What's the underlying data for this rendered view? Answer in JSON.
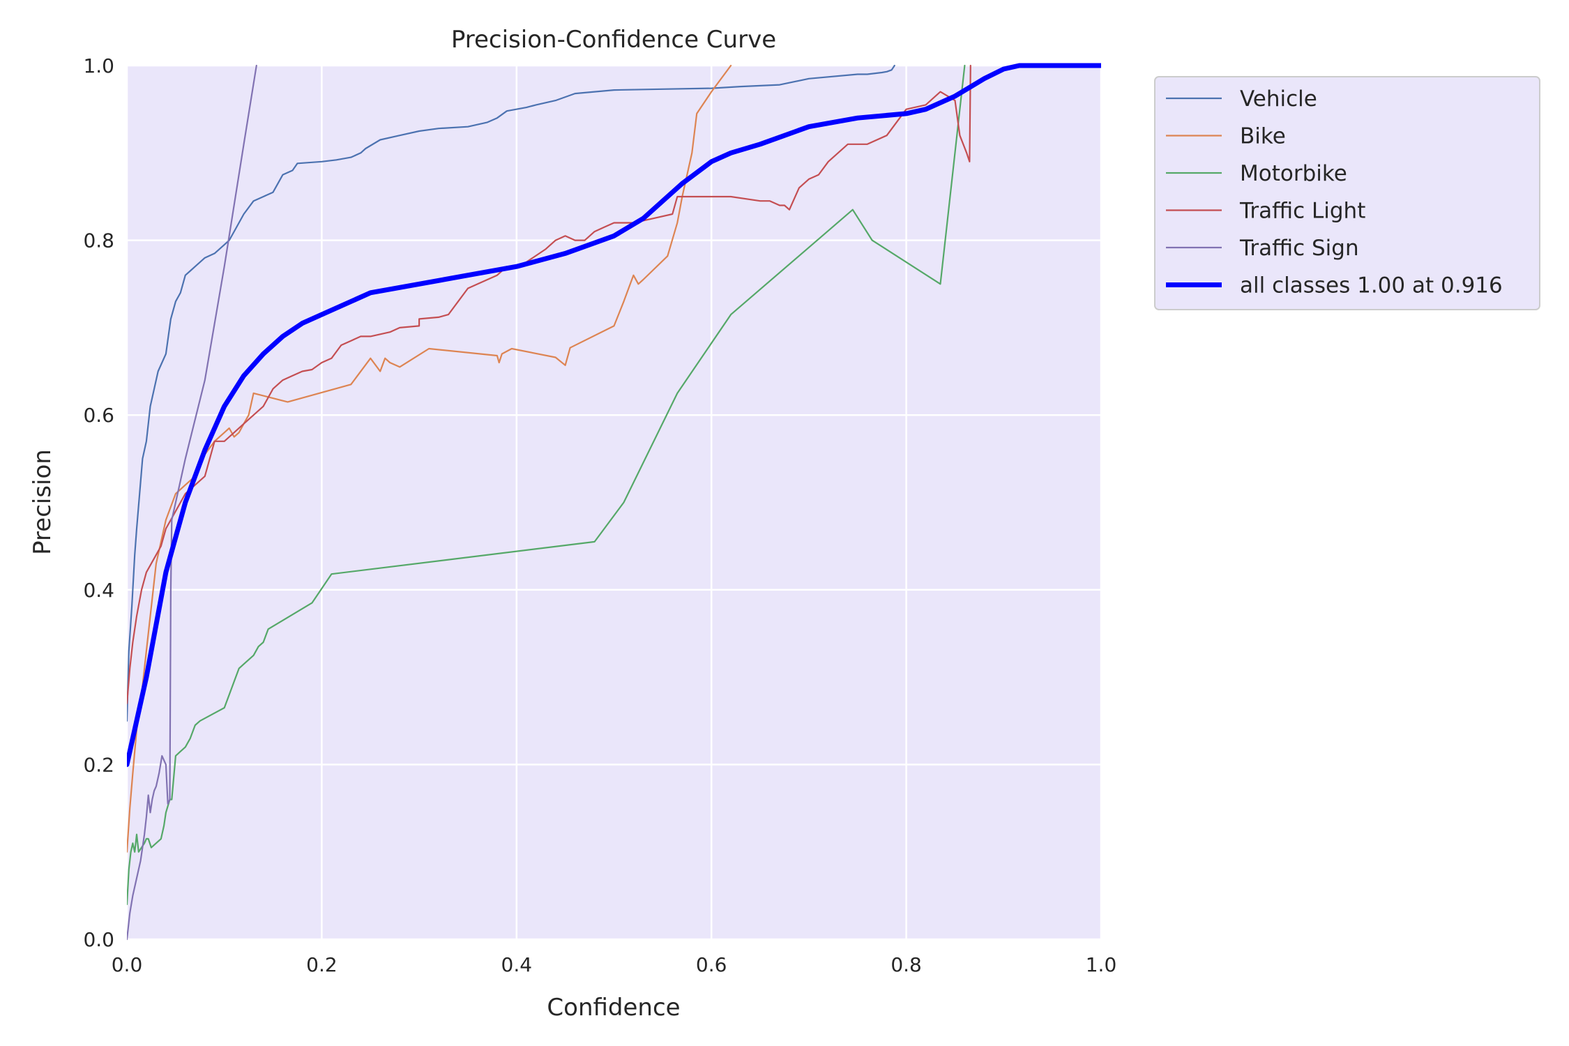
{
  "chart_data": {
    "type": "line",
    "title": "Precision-Confidence Curve",
    "xlabel": "Confidence",
    "ylabel": "Precision",
    "xlim": [
      0,
      1
    ],
    "ylim": [
      0,
      1
    ],
    "xticks": [
      "0.0",
      "0.2",
      "0.4",
      "0.6",
      "0.8",
      "1.0"
    ],
    "yticks": [
      "0.0",
      "0.2",
      "0.4",
      "0.6",
      "0.8",
      "1.0"
    ],
    "grid": true,
    "legend_position": "outside-top-right",
    "background_color": "#EAE6FA",
    "series": [
      {
        "name": "Vehicle",
        "color": "#4C72B0",
        "x": [
          0,
          0.002,
          0.005,
          0.008,
          0.01,
          0.013,
          0.016,
          0.02,
          0.024,
          0.028,
          0.032,
          0.036,
          0.04,
          0.045,
          0.05,
          0.055,
          0.06,
          0.065,
          0.07,
          0.075,
          0.08,
          0.09,
          0.1,
          0.105,
          0.11,
          0.12,
          0.13,
          0.14,
          0.15,
          0.155,
          0.16,
          0.17,
          0.175,
          0.2,
          0.215,
          0.23,
          0.24,
          0.245,
          0.26,
          0.28,
          0.3,
          0.32,
          0.35,
          0.37,
          0.38,
          0.39,
          0.41,
          0.42,
          0.44,
          0.46,
          0.5,
          0.55,
          0.6,
          0.63,
          0.67,
          0.7,
          0.75,
          0.76,
          0.775,
          0.78,
          0.785,
          0.788
        ],
        "y": [
          0.25,
          0.33,
          0.38,
          0.44,
          0.47,
          0.51,
          0.55,
          0.57,
          0.61,
          0.63,
          0.65,
          0.66,
          0.67,
          0.71,
          0.73,
          0.74,
          0.76,
          0.765,
          0.77,
          0.775,
          0.78,
          0.785,
          0.795,
          0.8,
          0.81,
          0.83,
          0.845,
          0.85,
          0.855,
          0.865,
          0.875,
          0.88,
          0.888,
          0.89,
          0.892,
          0.895,
          0.9,
          0.905,
          0.915,
          0.92,
          0.925,
          0.928,
          0.93,
          0.935,
          0.94,
          0.948,
          0.952,
          0.955,
          0.96,
          0.968,
          0.972,
          0.973,
          0.974,
          0.976,
          0.978,
          0.985,
          0.99,
          0.99,
          0.992,
          0.993,
          0.995,
          1.0
        ]
      },
      {
        "name": "Bike",
        "color": "#DD8452",
        "x": [
          0,
          0.003,
          0.006,
          0.01,
          0.015,
          0.02,
          0.025,
          0.03,
          0.04,
          0.05,
          0.06,
          0.07,
          0.08,
          0.09,
          0.1,
          0.105,
          0.11,
          0.115,
          0.12,
          0.125,
          0.13,
          0.165,
          0.23,
          0.25,
          0.26,
          0.265,
          0.27,
          0.28,
          0.31,
          0.38,
          0.382,
          0.385,
          0.395,
          0.44,
          0.45,
          0.455,
          0.5,
          0.51,
          0.52,
          0.525,
          0.53,
          0.555,
          0.565,
          0.57,
          0.58,
          0.585,
          0.6,
          0.62
        ],
        "y": [
          0.1,
          0.15,
          0.19,
          0.24,
          0.28,
          0.33,
          0.38,
          0.43,
          0.48,
          0.51,
          0.52,
          0.53,
          0.555,
          0.57,
          0.58,
          0.585,
          0.575,
          0.58,
          0.59,
          0.6,
          0.625,
          0.615,
          0.635,
          0.665,
          0.65,
          0.665,
          0.66,
          0.655,
          0.676,
          0.668,
          0.66,
          0.67,
          0.676,
          0.666,
          0.657,
          0.677,
          0.702,
          0.73,
          0.76,
          0.75,
          0.755,
          0.782,
          0.82,
          0.85,
          0.9,
          0.945,
          0.97,
          1.0
        ]
      },
      {
        "name": "Motorbike",
        "color": "#55A868",
        "x": [
          0,
          0.002,
          0.004,
          0.006,
          0.008,
          0.01,
          0.012,
          0.015,
          0.018,
          0.02,
          0.022,
          0.025,
          0.03,
          0.035,
          0.038,
          0.04,
          0.044,
          0.046,
          0.05,
          0.055,
          0.06,
          0.065,
          0.07,
          0.075,
          0.1,
          0.105,
          0.11,
          0.115,
          0.12,
          0.13,
          0.135,
          0.14,
          0.145,
          0.19,
          0.21,
          0.48,
          0.51,
          0.565,
          0.62,
          0.745,
          0.765,
          0.835,
          0.86
        ],
        "y": [
          0.04,
          0.08,
          0.1,
          0.11,
          0.1,
          0.12,
          0.1,
          0.105,
          0.11,
          0.115,
          0.115,
          0.105,
          0.11,
          0.115,
          0.13,
          0.145,
          0.16,
          0.16,
          0.21,
          0.215,
          0.22,
          0.23,
          0.245,
          0.25,
          0.265,
          0.28,
          0.295,
          0.31,
          0.315,
          0.325,
          0.335,
          0.34,
          0.355,
          0.385,
          0.418,
          0.455,
          0.5,
          0.625,
          0.715,
          0.835,
          0.8,
          0.75,
          1.0
        ]
      },
      {
        "name": "Traffic Light",
        "color": "#C44E52",
        "x": [
          0,
          0.003,
          0.006,
          0.01,
          0.015,
          0.02,
          0.025,
          0.03,
          0.035,
          0.04,
          0.045,
          0.05,
          0.06,
          0.07,
          0.08,
          0.09,
          0.1,
          0.11,
          0.12,
          0.13,
          0.14,
          0.15,
          0.16,
          0.17,
          0.18,
          0.19,
          0.2,
          0.21,
          0.22,
          0.23,
          0.24,
          0.25,
          0.27,
          0.28,
          0.3,
          0.3,
          0.32,
          0.33,
          0.34,
          0.35,
          0.36,
          0.37,
          0.38,
          0.39,
          0.4,
          0.41,
          0.43,
          0.44,
          0.45,
          0.46,
          0.47,
          0.48,
          0.49,
          0.5,
          0.52,
          0.54,
          0.56,
          0.565,
          0.6,
          0.62,
          0.65,
          0.66,
          0.67,
          0.675,
          0.68,
          0.69,
          0.7,
          0.71,
          0.72,
          0.73,
          0.74,
          0.76,
          0.78,
          0.8,
          0.82,
          0.835,
          0.85,
          0.855,
          0.862,
          0.865,
          0.866
        ],
        "y": [
          0.27,
          0.31,
          0.34,
          0.37,
          0.4,
          0.42,
          0.43,
          0.44,
          0.45,
          0.47,
          0.48,
          0.49,
          0.51,
          0.52,
          0.53,
          0.57,
          0.57,
          0.58,
          0.59,
          0.6,
          0.61,
          0.63,
          0.64,
          0.645,
          0.65,
          0.652,
          0.66,
          0.665,
          0.68,
          0.685,
          0.69,
          0.69,
          0.695,
          0.7,
          0.702,
          0.71,
          0.712,
          0.715,
          0.73,
          0.745,
          0.75,
          0.755,
          0.76,
          0.77,
          0.77,
          0.775,
          0.79,
          0.8,
          0.805,
          0.8,
          0.8,
          0.81,
          0.815,
          0.82,
          0.82,
          0.825,
          0.83,
          0.85,
          0.85,
          0.85,
          0.845,
          0.845,
          0.84,
          0.84,
          0.835,
          0.86,
          0.87,
          0.875,
          0.89,
          0.9,
          0.91,
          0.91,
          0.92,
          0.95,
          0.955,
          0.97,
          0.96,
          0.92,
          0.9,
          0.89,
          1.0
        ]
      },
      {
        "name": "Traffic Sign",
        "color": "#8172B2",
        "x": [
          0,
          0.003,
          0.006,
          0.01,
          0.014,
          0.018,
          0.02,
          0.022,
          0.024,
          0.026,
          0.028,
          0.03,
          0.033,
          0.036,
          0.04,
          0.042,
          0.044,
          0.045,
          0.046,
          0.048,
          0.05,
          0.06,
          0.08,
          0.1,
          0.12,
          0.133
        ],
        "y": [
          0.0,
          0.03,
          0.05,
          0.07,
          0.09,
          0.12,
          0.14,
          0.165,
          0.145,
          0.16,
          0.17,
          0.175,
          0.19,
          0.21,
          0.2,
          0.155,
          0.16,
          0.4,
          0.48,
          0.49,
          0.5,
          0.55,
          0.64,
          0.77,
          0.91,
          1.0
        ]
      },
      {
        "name": "all classes 1.00 at 0.916",
        "color": "#0000FF",
        "width": 7,
        "x": [
          0,
          0.02,
          0.04,
          0.06,
          0.08,
          0.1,
          0.12,
          0.14,
          0.16,
          0.18,
          0.2,
          0.25,
          0.3,
          0.35,
          0.4,
          0.45,
          0.5,
          0.53,
          0.55,
          0.57,
          0.6,
          0.62,
          0.65,
          0.7,
          0.75,
          0.8,
          0.82,
          0.85,
          0.88,
          0.9,
          0.916,
          1.0
        ],
        "y": [
          0.2,
          0.3,
          0.42,
          0.5,
          0.56,
          0.61,
          0.645,
          0.67,
          0.69,
          0.705,
          0.715,
          0.74,
          0.75,
          0.76,
          0.77,
          0.785,
          0.805,
          0.825,
          0.845,
          0.865,
          0.89,
          0.9,
          0.91,
          0.93,
          0.94,
          0.945,
          0.95,
          0.965,
          0.985,
          0.996,
          1.0,
          1.0
        ]
      }
    ]
  }
}
